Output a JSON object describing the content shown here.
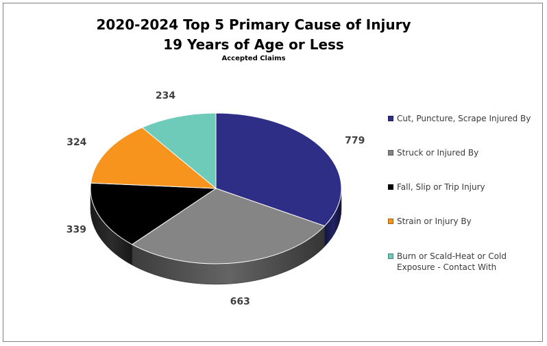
{
  "chart_data": {
    "type": "pie",
    "title": "2020-2024 Top 5 Primary Cause of Injury",
    "title_line2": "19 Years of Age or Less",
    "subtitle": "Accepted Claims",
    "legend_position": "right",
    "slices": [
      {
        "label": "Cut, Puncture, Scrape Injured By",
        "value": 779,
        "color": "#2e2e86"
      },
      {
        "label": "Struck or Injured By",
        "value": 663,
        "color": "#858585"
      },
      {
        "label": "Fall, Slip or Trip Injury",
        "value": 339,
        "color": "#000000"
      },
      {
        "label": "Strain or Injury By",
        "value": 324,
        "color": "#f7941d"
      },
      {
        "label": "Burn or Scald-Heat or Cold Exposure - Contact With",
        "value": 234,
        "color": "#6ecab9"
      }
    ]
  }
}
